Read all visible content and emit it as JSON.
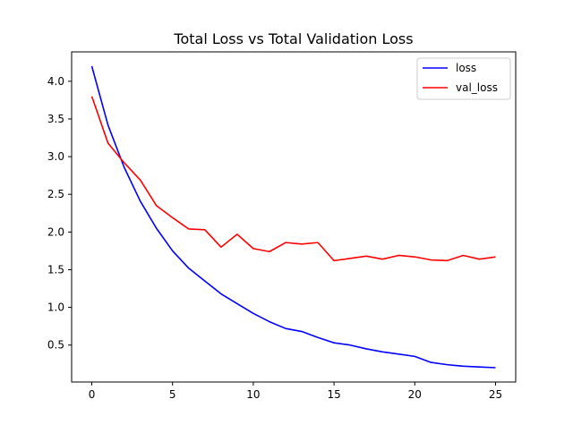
{
  "chart_data": {
    "type": "line",
    "title": "Total Loss vs Total Validation Loss",
    "xlabel": "",
    "ylabel": "",
    "xlim": [
      -1.25,
      26.25
    ],
    "ylim": [
      0.01,
      4.39
    ],
    "xticks": [
      0,
      5,
      10,
      15,
      20,
      25
    ],
    "yticks": [
      0.5,
      1.0,
      1.5,
      2.0,
      2.5,
      3.0,
      3.5,
      4.0
    ],
    "x": [
      0,
      1,
      2,
      3,
      4,
      5,
      6,
      7,
      8,
      9,
      10,
      11,
      12,
      13,
      14,
      15,
      16,
      17,
      18,
      19,
      20,
      21,
      22,
      23,
      24,
      25
    ],
    "series": [
      {
        "name": "loss",
        "color": "#0000ff",
        "values": [
          4.2,
          3.42,
          2.86,
          2.41,
          2.05,
          1.75,
          1.52,
          1.35,
          1.18,
          1.05,
          0.92,
          0.81,
          0.72,
          0.68,
          0.6,
          0.53,
          0.5,
          0.45,
          0.41,
          0.38,
          0.35,
          0.27,
          0.24,
          0.22,
          0.21,
          0.2
        ]
      },
      {
        "name": "val_loss",
        "color": "#ff0000",
        "values": [
          3.8,
          3.18,
          2.92,
          2.69,
          2.35,
          2.19,
          2.04,
          2.03,
          1.8,
          1.97,
          1.78,
          1.74,
          1.86,
          1.84,
          1.86,
          1.62,
          1.65,
          1.68,
          1.64,
          1.69,
          1.67,
          1.63,
          1.62,
          1.69,
          1.64,
          1.67
        ]
      }
    ],
    "grid": false,
    "legend": "top-right"
  }
}
